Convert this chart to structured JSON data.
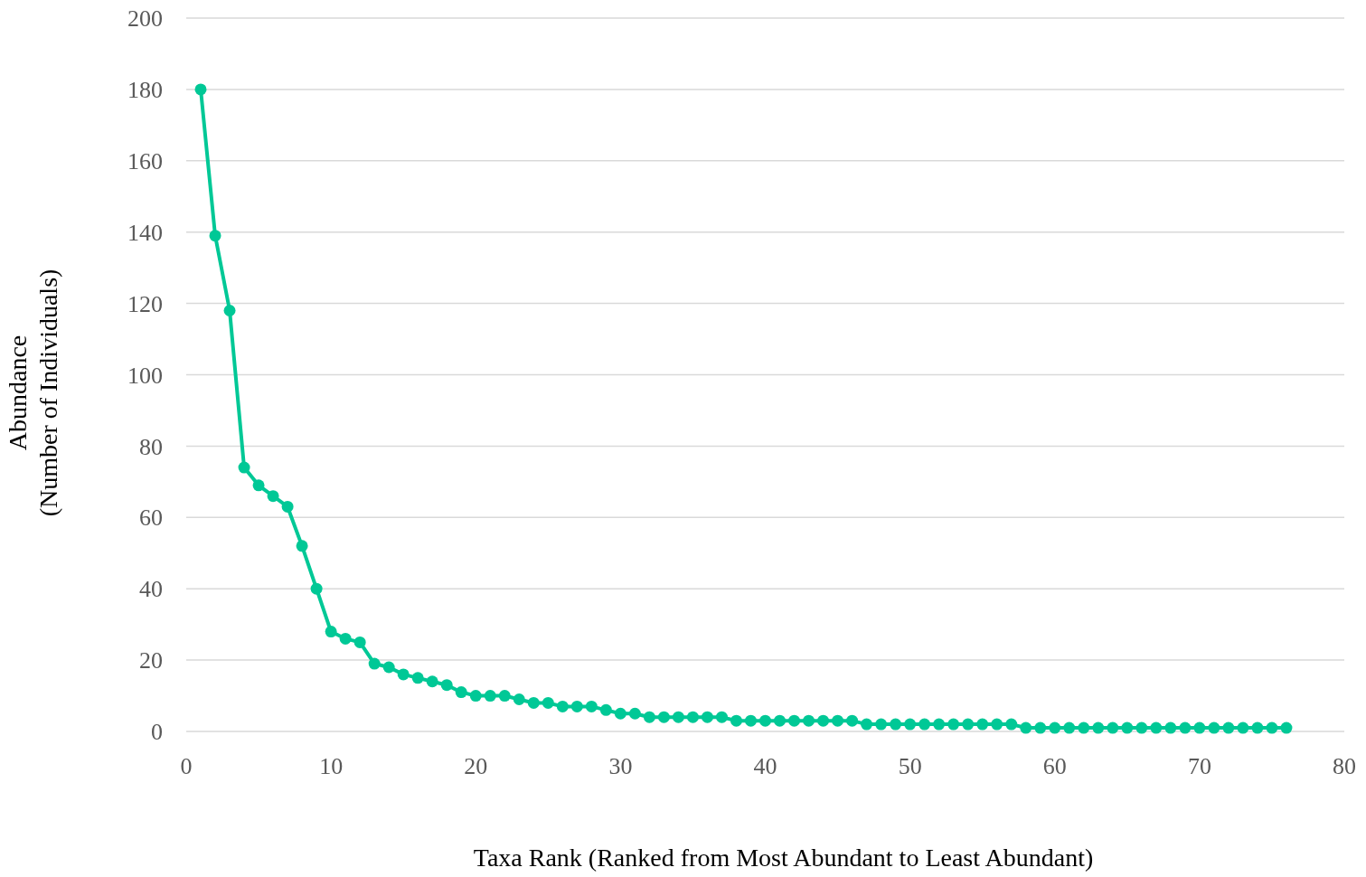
{
  "chart_data": {
    "type": "line",
    "xlabel": "Taxa Rank (Ranked from Most Abundant to Least Abundant)",
    "ylabel": "Abundance\n(Number of Individuals)",
    "x": [
      1,
      2,
      3,
      4,
      5,
      6,
      7,
      8,
      9,
      10,
      11,
      12,
      13,
      14,
      15,
      16,
      17,
      18,
      19,
      20,
      21,
      22,
      23,
      24,
      25,
      26,
      27,
      28,
      29,
      30,
      31,
      32,
      33,
      34,
      35,
      36,
      37,
      38,
      39,
      40,
      41,
      42,
      43,
      44,
      45,
      46,
      47,
      48,
      49,
      50,
      51,
      52,
      53,
      54,
      55,
      56,
      57,
      58,
      59,
      60,
      61,
      62,
      63,
      64,
      65,
      66,
      67,
      68,
      69,
      70,
      71,
      72,
      73,
      74,
      75,
      76
    ],
    "series": [
      {
        "color": "#00c896",
        "values": [
          180,
          139,
          118,
          74,
          69,
          66,
          63,
          52,
          40,
          28,
          26,
          25,
          19,
          18,
          16,
          15,
          14,
          13,
          11,
          10,
          10,
          10,
          9,
          8,
          8,
          7,
          7,
          7,
          6,
          5,
          5,
          4,
          4,
          4,
          4,
          4,
          4,
          3,
          3,
          3,
          3,
          3,
          3,
          3,
          3,
          3,
          2,
          2,
          2,
          2,
          2,
          2,
          2,
          2,
          2,
          2,
          2,
          1,
          1,
          1,
          1,
          1,
          1,
          1,
          1,
          1,
          1,
          1,
          1,
          1,
          1,
          1,
          1,
          1,
          1,
          1
        ]
      }
    ],
    "xlim": [
      0,
      80
    ],
    "xticks": [
      0,
      10,
      20,
      30,
      40,
      50,
      60,
      70,
      80
    ],
    "ylim": [
      0,
      200
    ],
    "yticks": [
      0,
      20,
      40,
      60,
      80,
      100,
      120,
      140,
      160,
      180,
      200
    ],
    "grid": "y",
    "marker": "circle",
    "line_style": "solid"
  }
}
